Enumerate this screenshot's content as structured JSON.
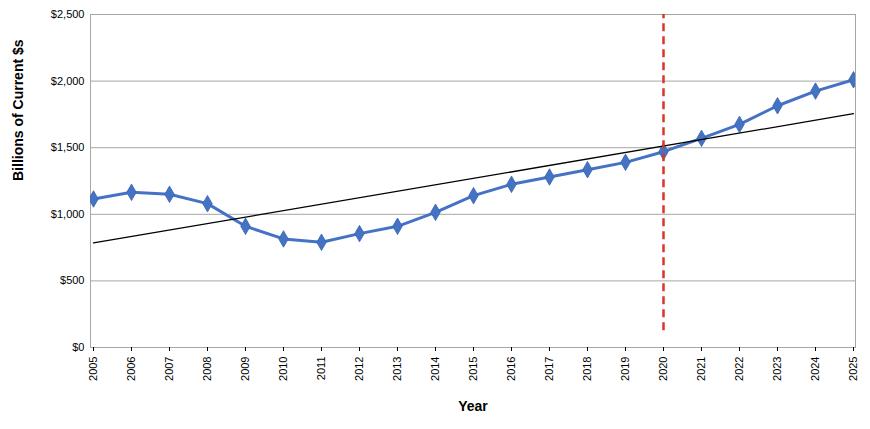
{
  "chart_data": {
    "type": "line",
    "y_label": "Billions of Current $s",
    "x_label": "Year",
    "categories": [
      "2005",
      "2006",
      "2007",
      "2008",
      "2009",
      "2010",
      "2011",
      "2012",
      "2013",
      "2014",
      "2015",
      "2016",
      "2017",
      "2018",
      "2019",
      "2020",
      "2021",
      "2022",
      "2023",
      "2024",
      "2025"
    ],
    "series": [
      {
        "color": "#4472c4",
        "marker": "diamond",
        "line_style": "solid",
        "values": [
          1115,
          1165,
          1150,
          1080,
          910,
          815,
          790,
          855,
          910,
          1015,
          1140,
          1225,
          1280,
          1335,
          1390,
          1470,
          1570,
          1675,
          1815,
          1925,
          2010
        ]
      },
      {
        "color": "#000000",
        "marker": "none",
        "line_style": "solid",
        "values": [
          785,
          null,
          null,
          null,
          null,
          null,
          null,
          null,
          null,
          null,
          null,
          null,
          null,
          null,
          null,
          null,
          null,
          null,
          null,
          null,
          1755
        ]
      }
    ],
    "reference_line": {
      "x": "2020",
      "y": [
        125,
        2500
      ],
      "color": "#d9362b",
      "line_style": "dashed"
    },
    "ylim": [
      0,
      2500
    ],
    "yticks": [
      {
        "value": 0,
        "label": "$0"
      },
      {
        "value": 500,
        "label": "$500"
      },
      {
        "value": 1000,
        "label": "$1,000"
      },
      {
        "value": 1500,
        "label": "$1,500"
      },
      {
        "value": 2000,
        "label": "$2,000"
      },
      {
        "value": 2500,
        "label": "$2,500"
      }
    ],
    "grid": true
  }
}
